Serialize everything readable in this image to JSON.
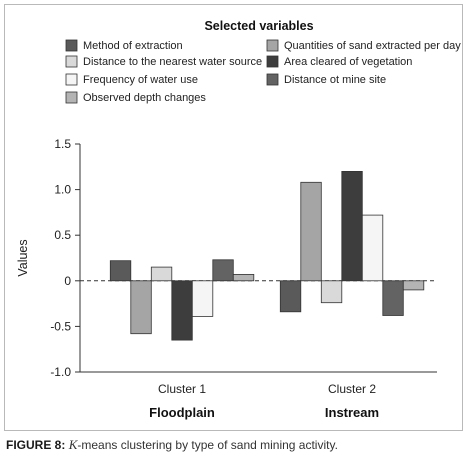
{
  "chart_data": {
    "type": "bar",
    "title": "",
    "ylabel": "Values",
    "xlabel": "",
    "ylim": [
      -1.0,
      1.5
    ],
    "yticks": [
      "1.5",
      "1.0",
      "0.5",
      "0",
      "-0.5",
      "-1.0"
    ],
    "ytick_values": [
      1.5,
      1.0,
      0.5,
      0,
      -0.5,
      -1.0
    ],
    "grid": false,
    "zero_line": "dashed",
    "categories": [
      "Cluster 1",
      "Cluster 2"
    ],
    "group_labels": [
      "Floodplain",
      "Instream"
    ],
    "legend_title": "Selected variables",
    "legend_placement": "top",
    "series": [
      {
        "name": "Method of extraction",
        "values": [
          0.22,
          -0.34
        ],
        "color": "#5a5a5a"
      },
      {
        "name": "Quantities of sand extracted per day",
        "values": [
          -0.58,
          1.08
        ],
        "color": "#a5a5a5"
      },
      {
        "name": "Distance to the nearest water source",
        "values": [
          0.15,
          -0.24
        ],
        "color": "#d9d9d9"
      },
      {
        "name": "Area cleared of vegetation",
        "values": [
          -0.65,
          1.2
        ],
        "color": "#3d3d3d"
      },
      {
        "name": "Frequency of water use",
        "values": [
          -0.39,
          0.72
        ],
        "color": "#f5f5f5"
      },
      {
        "name": "Distance ot mine site",
        "values": [
          0.23,
          -0.38
        ],
        "color": "#636363"
      },
      {
        "name": "Observed depth changes",
        "values": [
          0.07,
          -0.1
        ],
        "color": "#b4b4b4"
      }
    ]
  },
  "caption": {
    "figure": "FIGURE 8:",
    "k": "K",
    "text": "-means clustering by type of sand mining activity."
  }
}
